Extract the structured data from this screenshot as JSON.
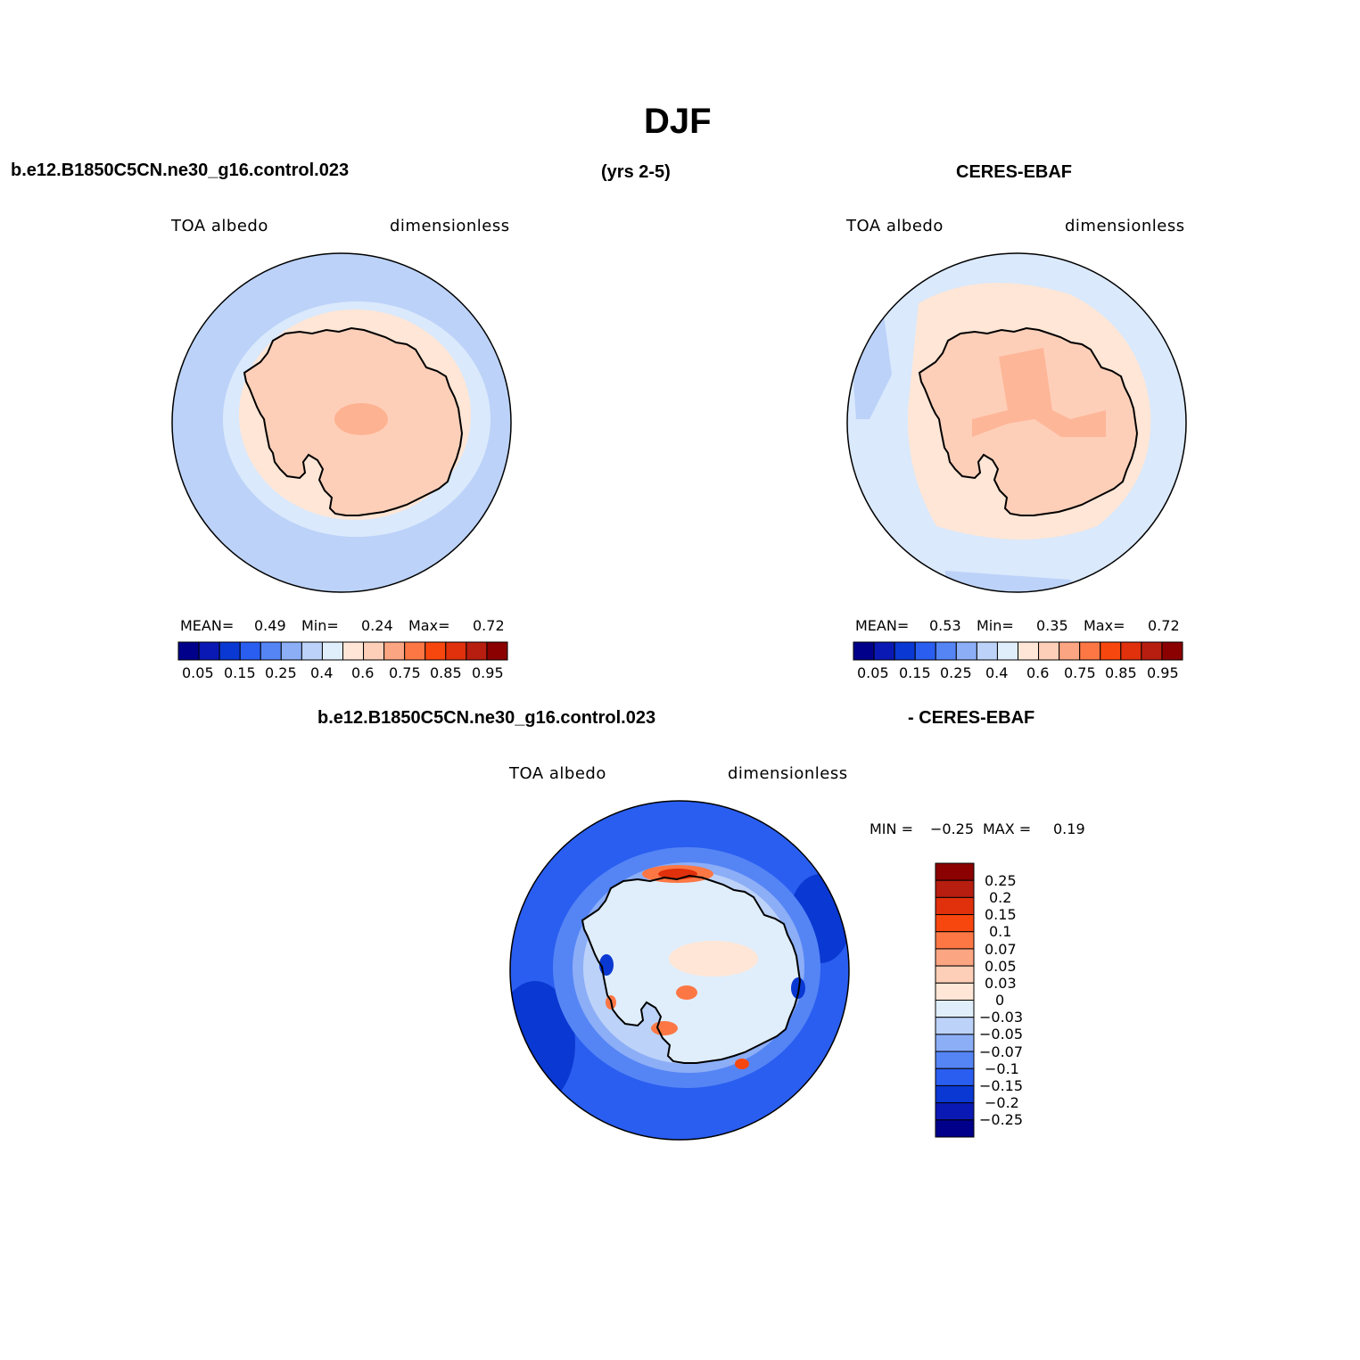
{
  "page": {
    "title": "DJF",
    "case_name": "b.e12.B1850C5CN.ne30_g16.control.023",
    "years": "(yrs 2-5)",
    "obs_name": "CERES-EBAF",
    "diff_case_name": "b.e12.B1850C5CN.ne30_g16.control.023",
    "diff_obs_name": "- CERES-EBAF"
  },
  "colors": {
    "seq_palette": [
      "#00008b",
      "#0a19b4",
      "#0a38d2",
      "#2a5ef0",
      "#5585f5",
      "#8caef7",
      "#bcd2f8",
      "#e0eefc",
      "#ffe6d6",
      "#fecfb8",
      "#fca582",
      "#fd7744",
      "#f8470e",
      "#e0300c",
      "#b71e10",
      "#8b0000"
    ],
    "diff_palette": [
      "#00008b",
      "#0a19b4",
      "#0a38d2",
      "#2a5ef0",
      "#5585f5",
      "#8caef7",
      "#bcd2f8",
      "#e0eefc",
      "#ffe6d6",
      "#fecfb8",
      "#fca582",
      "#fd7744",
      "#f8470e",
      "#e0300c",
      "#b71e10",
      "#8b0000"
    ],
    "coastline": "#000000"
  },
  "panels": [
    {
      "variable": "TOA  albedo",
      "units": "dimensionless",
      "stats": {
        "mean_label": "MEAN=",
        "mean": "0.49",
        "min_label": "Min=",
        "min": "0.24",
        "max_label": "Max=",
        "max": "0.72"
      },
      "colorbar_ticks": [
        "0.05",
        "0.15",
        "0.25",
        "0.4",
        "0.6",
        "0.75",
        "0.85",
        "0.95"
      ]
    },
    {
      "variable": "TOA  albedo",
      "units": "dimensionless",
      "stats": {
        "mean_label": "MEAN=",
        "mean": "0.53",
        "min_label": "Min=",
        "min": "0.35",
        "max_label": "Max=",
        "max": "0.72"
      },
      "colorbar_ticks": [
        "0.05",
        "0.15",
        "0.25",
        "0.4",
        "0.6",
        "0.75",
        "0.85",
        "0.95"
      ]
    }
  ],
  "diff_panel": {
    "variable": "TOA  albedo",
    "units": "dimensionless",
    "min_label": "MIN =",
    "min": "−0.25",
    "max_label": "MAX =",
    "max": "0.19",
    "colorbar_ticks": [
      "0.25",
      "0.2",
      "0.15",
      "0.1",
      "0.07",
      "0.05",
      "0.03",
      "0",
      "−0.03",
      "−0.05",
      "−0.07",
      "−0.1",
      "−0.15",
      "−0.2",
      "−0.25"
    ]
  }
}
